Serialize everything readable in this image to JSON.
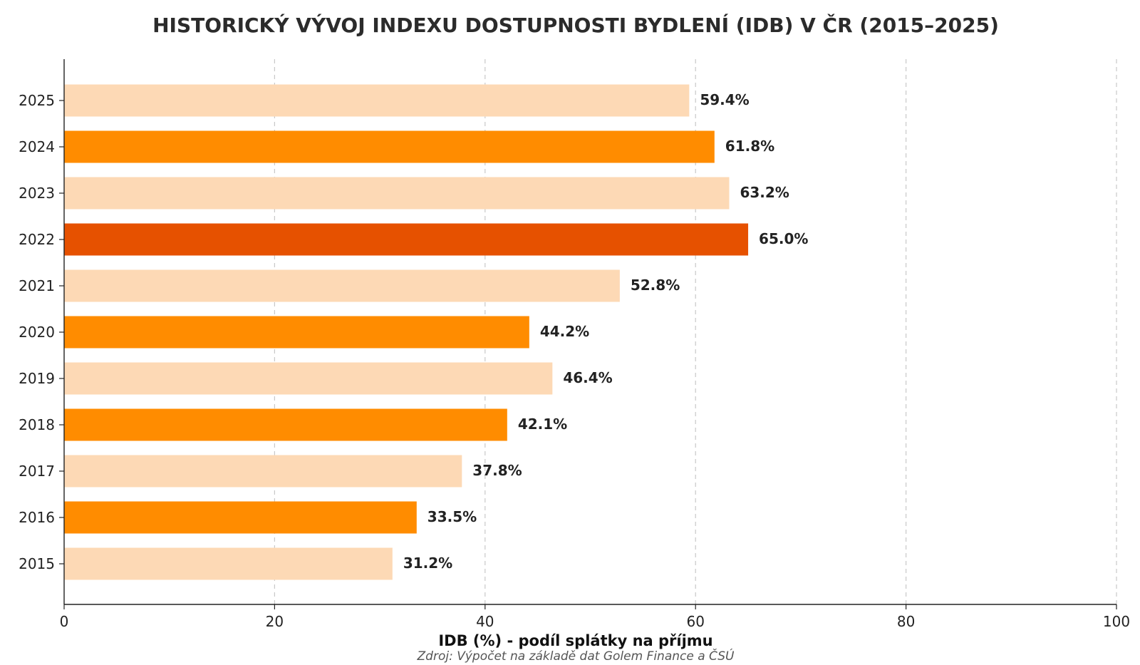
{
  "chart_data": {
    "type": "bar",
    "orientation": "horizontal",
    "title": "HISTORICKÝ VÝVOJ INDEXU DOSTUPNOSTI BYDLENÍ (IDB) V ČR (2015–2025)",
    "xlabel": "IDB (%) - podíl splátky na příjmu",
    "ylabel": "",
    "source": "Zdroj: Výpočet na základě dat Golem Finance a ČSÚ",
    "xlim": [
      0,
      100
    ],
    "xticks": [
      0,
      20,
      40,
      60,
      80,
      100
    ],
    "xtick_labels": [
      "0",
      "20",
      "40",
      "60",
      "80",
      "100"
    ],
    "grid": "vertical dashed",
    "categories": [
      "2025",
      "2024",
      "2023",
      "2022",
      "2021",
      "2020",
      "2019",
      "2018",
      "2017",
      "2016",
      "2015"
    ],
    "values": [
      59.4,
      61.8,
      63.2,
      65.0,
      52.8,
      44.2,
      46.4,
      42.1,
      37.8,
      33.5,
      31.2
    ],
    "value_labels": [
      "59.4%",
      "61.8%",
      "63.2%",
      "65.0%",
      "52.8%",
      "44.2%",
      "46.4%",
      "42.1%",
      "37.8%",
      "33.5%",
      "31.2%"
    ],
    "bar_colors": [
      "#fdd9b5",
      "#ff8c00",
      "#fdd9b5",
      "#e65100",
      "#fdd9b5",
      "#ff8c00",
      "#fdd9b5",
      "#ff8c00",
      "#fdd9b5",
      "#ff8c00",
      "#fdd9b5"
    ]
  }
}
